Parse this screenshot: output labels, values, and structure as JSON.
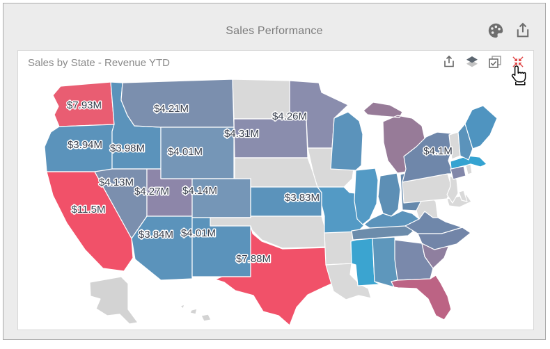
{
  "page": {
    "background": "#ffffff",
    "panel_background": "#ececec",
    "panel_border": "#a9a9a9"
  },
  "titlebar": {
    "title": "Sales Performance",
    "text_color": "#7c7c7c",
    "icons": [
      {
        "name": "palette-icon",
        "color": "#6e6e6e"
      },
      {
        "name": "export-icon",
        "color": "#6e6e6e"
      }
    ]
  },
  "card": {
    "title": "Sales by State - Revenue YTD",
    "title_color": "#8a8a8a",
    "background": "#ffffff",
    "border": "#d8d8d8",
    "toolbar": [
      {
        "name": "export-icon",
        "color": "#666666"
      },
      {
        "name": "layers-icon",
        "color": "#5c6670"
      },
      {
        "name": "multiselect-icon",
        "color": "#666666"
      },
      {
        "name": "collapse-icon",
        "color": "#e04848",
        "state": "hovered"
      }
    ]
  },
  "cursor": {
    "name": "hand-cursor",
    "position": "over collapse-icon"
  },
  "chart_data": {
    "type": "choropleth",
    "title": "Sales by State - Revenue YTD",
    "region": "United States",
    "value_format": "USD millions (revenue YTD)",
    "label_text_color": "#3a414f",
    "label_halo_color": "#ffffff",
    "no_data_color": "#d9d9d9",
    "states": [
      {
        "id": "WA",
        "color": "#e95d72",
        "label": "$7.93M"
      },
      {
        "id": "OR",
        "color": "#5b93bb",
        "label": "$3.94M"
      },
      {
        "id": "CA",
        "color": "#f15169",
        "label": "$11.5M"
      },
      {
        "id": "ID",
        "color": "#5b93bb",
        "label": "$3.98M"
      },
      {
        "id": "NV",
        "color": "#7b8fae",
        "label": "$4.13M"
      },
      {
        "id": "UT",
        "color": "#8d86a9",
        "label": "$4.27M"
      },
      {
        "id": "AZ",
        "color": "#5b93bb",
        "label": "$3.84M"
      },
      {
        "id": "MT",
        "color": "#7b8fae",
        "label": "$4.21M"
      },
      {
        "id": "WY",
        "color": "#7596b7",
        "label": "$4.01M"
      },
      {
        "id": "CO",
        "color": "#7596b7",
        "label": "$4.14M"
      },
      {
        "id": "NM",
        "color": "#5b93bb",
        "label": "$4.01M"
      },
      {
        "id": "TX",
        "color": "#f15169",
        "label": "$7.88M"
      },
      {
        "id": "ND",
        "color": "#d9d9d9"
      },
      {
        "id": "SD",
        "color": "#8a8dad",
        "label": "$4.31M"
      },
      {
        "id": "MN",
        "color": "#8a8dad",
        "label": "$4.26M"
      },
      {
        "id": "NE",
        "color": "#d9d9d9"
      },
      {
        "id": "KS",
        "color": "#5b93bb",
        "label": "$3.83M"
      },
      {
        "id": "OK",
        "color": "#d9d9d9"
      },
      {
        "id": "IA",
        "color": "#d9d9d9"
      },
      {
        "id": "MO",
        "color": "#539ac5"
      },
      {
        "id": "AR",
        "color": "#d9d9d9"
      },
      {
        "id": "LA",
        "color": "#d9d9d9"
      },
      {
        "id": "WI",
        "color": "#5b93bb"
      },
      {
        "id": "MI",
        "color": "#977b98"
      },
      {
        "id": "IL",
        "color": "#539ac5"
      },
      {
        "id": "IN",
        "color": "#5d8fb5"
      },
      {
        "id": "OH",
        "color": "#6589ac"
      },
      {
        "id": "KY",
        "color": "#5b93bb"
      },
      {
        "id": "TN",
        "color": "#6c8cab"
      },
      {
        "id": "MS",
        "color": "#3ba4d0"
      },
      {
        "id": "AL",
        "color": "#5e97bc"
      },
      {
        "id": "GA",
        "color": "#7a89ab"
      },
      {
        "id": "FL",
        "color": "#bc6384"
      },
      {
        "id": "SC",
        "color": "#8f7f9f"
      },
      {
        "id": "NC",
        "color": "#7285a8"
      },
      {
        "id": "VA",
        "color": "#6f87aa"
      },
      {
        "id": "WV",
        "color": "#d9d9d9"
      },
      {
        "id": "MD",
        "color": "#d9d9d9"
      },
      {
        "id": "DE",
        "color": "#d9d9d9"
      },
      {
        "id": "PA",
        "color": "#d9d9d9"
      },
      {
        "id": "NJ",
        "color": "#d9d9d9"
      },
      {
        "id": "NY",
        "color": "#6f87aa",
        "label": "$4.1M"
      },
      {
        "id": "CT",
        "color": "#8287a9"
      },
      {
        "id": "RI",
        "color": "#d9d9d9"
      },
      {
        "id": "MA",
        "color": "#35a3d1"
      },
      {
        "id": "VT",
        "color": "#d9d9d9"
      },
      {
        "id": "NH",
        "color": "#5b93bb"
      },
      {
        "id": "ME",
        "color": "#4f94c0"
      },
      {
        "id": "AK",
        "color": "#d3d3d3"
      },
      {
        "id": "HI",
        "color": "#d3d3d3"
      }
    ]
  }
}
